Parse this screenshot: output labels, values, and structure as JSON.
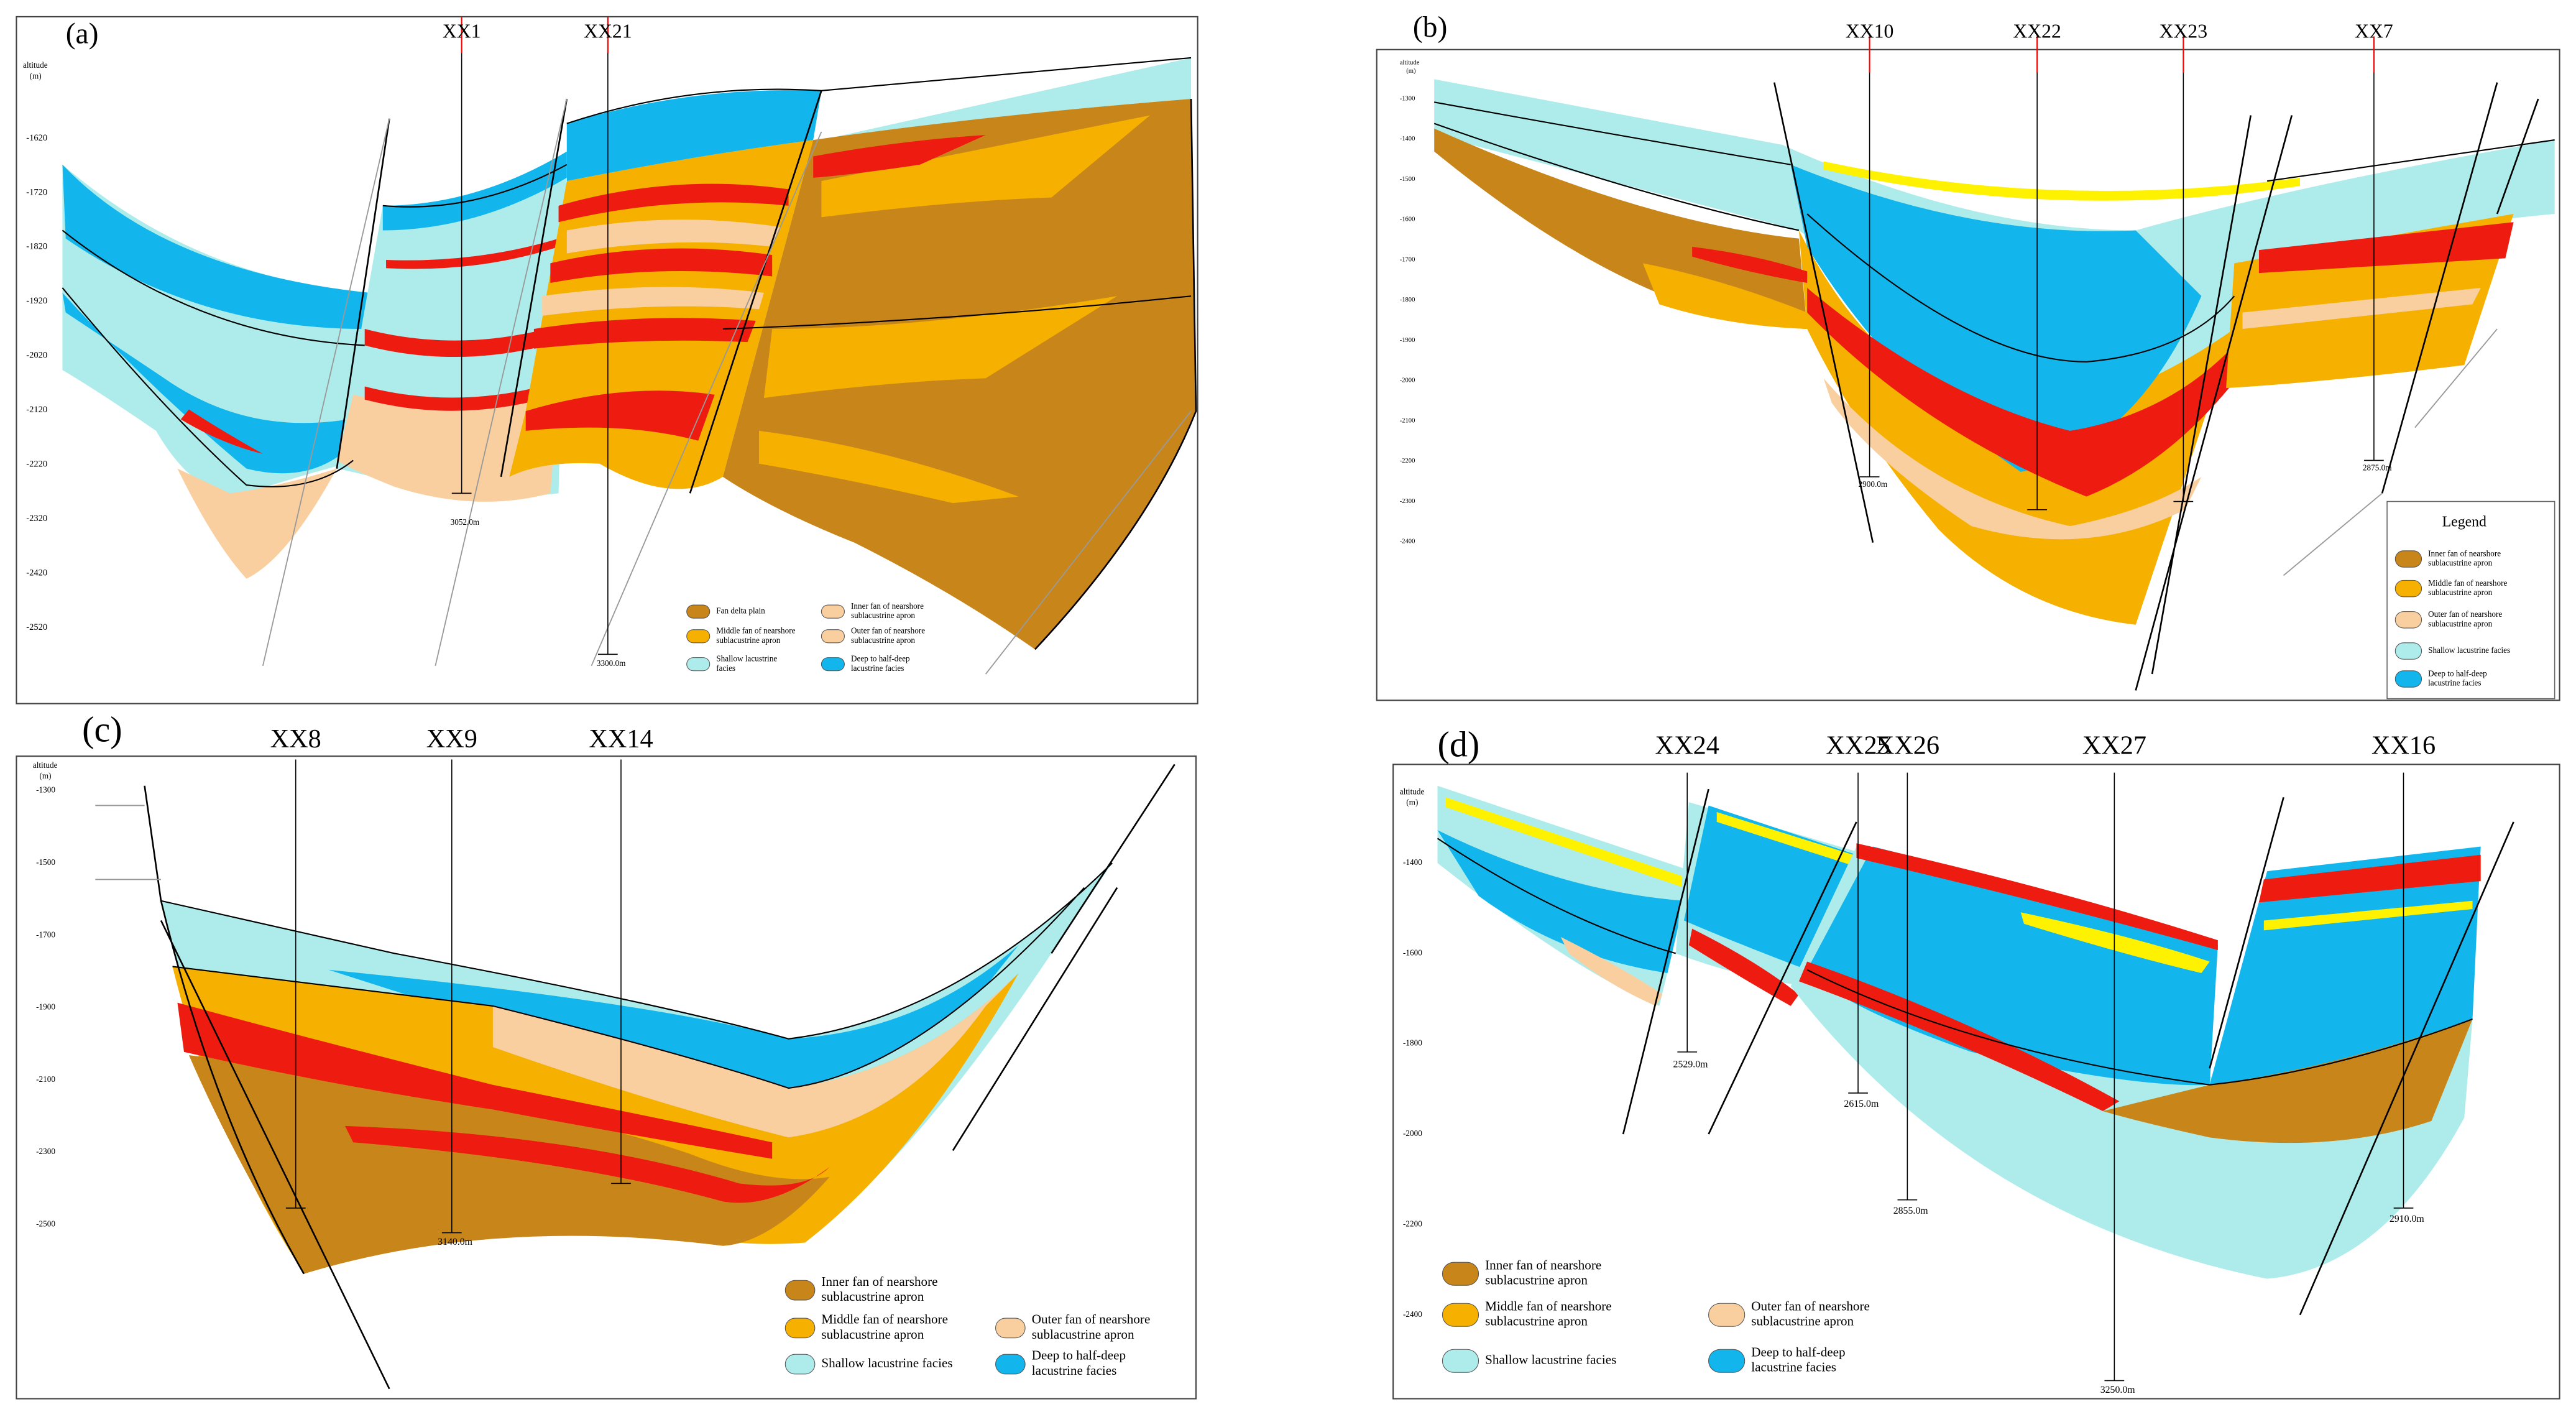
{
  "panels": [
    {
      "label": "(a)",
      "axis_title": "altitude",
      "axis_unit": "(m)",
      "depth_ticks": [
        "-1620",
        "-1720",
        "-1820",
        "-1920",
        "-2020",
        "-2120",
        "-2220",
        "-2320",
        "-2420",
        "-2520"
      ],
      "wells": [
        {
          "name": "XX1",
          "total_depth": "3052.0m"
        },
        {
          "name": "XX21",
          "total_depth": "3300.0m"
        }
      ],
      "legend": {
        "entries": [
          {
            "lines": [
              "Fan delta plain"
            ]
          },
          {
            "lines": [
              "Inner fan of nearshore",
              "sublacustrine apron"
            ]
          },
          {
            "lines": [
              "Middle fan of nearshore",
              "sublacustrine apron"
            ]
          },
          {
            "lines": [
              "Outer fan of nearshore",
              "sublacustrine apron"
            ]
          },
          {
            "lines": [
              "Shallow lacustrine",
              "facies"
            ]
          },
          {
            "lines": [
              "Deep to half-deep",
              "lacustrine facies"
            ]
          }
        ]
      }
    },
    {
      "label": "(b)",
      "axis_title": "altitude",
      "axis_unit": "(m)",
      "depth_ticks": [
        "-1300",
        "-1400",
        "-1500",
        "-1600",
        "-1700",
        "-1800",
        "-1900",
        "-2000",
        "-2100",
        "-2200",
        "-2300",
        "-2400"
      ],
      "wells": [
        {
          "name": "XX10",
          "total_depth": "2900.0m"
        },
        {
          "name": "XX22"
        },
        {
          "name": "XX23"
        },
        {
          "name": "XX7",
          "total_depth": "2875.0m"
        }
      ],
      "legend": {
        "title": "Legend",
        "entries": [
          {
            "lines": [
              "Inner fan of nearshore",
              "sublacustrine apron"
            ]
          },
          {
            "lines": [
              "Middle fan of nearshore",
              "sublacustrine apron"
            ]
          },
          {
            "lines": [
              "Outer fan of nearshore",
              "sublacustrine apron"
            ]
          },
          {
            "lines": [
              "Shallow lacustrine facies"
            ]
          },
          {
            "lines": [
              "Deep to half-deep",
              "lacustrine facies"
            ]
          }
        ]
      }
    },
    {
      "label": "(c)",
      "axis_title": "altitude",
      "axis_unit": "(m)",
      "depth_ticks": [
        "-1300",
        "-1500",
        "-1700",
        "-1900",
        "-2100",
        "-2300",
        "-2500"
      ],
      "wells": [
        {
          "name": "XX8"
        },
        {
          "name": "XX9",
          "total_depth": "3140.0m"
        },
        {
          "name": "XX14"
        }
      ],
      "legend": {
        "entries": [
          {
            "lines": [
              "Inner fan of nearshore",
              "sublacustrine apron"
            ]
          },
          {
            "lines": [
              "Middle fan of nearshore",
              "sublacustrine apron"
            ]
          },
          {
            "lines": [
              "Shallow lacustrine facies"
            ]
          },
          {
            "lines": [
              "Outer fan of nearshore",
              "sublacustrine apron"
            ]
          },
          {
            "lines": [
              "Deep to half-deep",
              "lacustrine facies"
            ]
          }
        ]
      }
    },
    {
      "label": "(d)",
      "axis_title": "altitude",
      "axis_unit": "(m)",
      "depth_ticks": [
        "-1400",
        "-1600",
        "-1800",
        "-2000",
        "-2200",
        "-2400"
      ],
      "wells": [
        {
          "name": "XX24",
          "total_depth": "2529.0m"
        },
        {
          "name": "XX25",
          "total_depth": "2615.0m"
        },
        {
          "name": "XX26",
          "total_depth": "2855.0m"
        },
        {
          "name": "XX27",
          "total_depth": "3250.0m"
        },
        {
          "name": "XX16",
          "total_depth": "2910.0m"
        }
      ],
      "legend": {
        "entries": [
          {
            "lines": [
              "Inner fan of nearshore",
              "sublacustrine apron"
            ]
          },
          {
            "lines": [
              "Middle fan of nearshore",
              "sublacustrine apron"
            ]
          },
          {
            "lines": [
              "Shallow lacustrine facies"
            ]
          },
          {
            "lines": [
              "Outer fan of nearshore",
              "sublacustrine apron"
            ]
          },
          {
            "lines": [
              "Deep to half-deep",
              "lacustrine facies"
            ]
          }
        ]
      }
    }
  ]
}
